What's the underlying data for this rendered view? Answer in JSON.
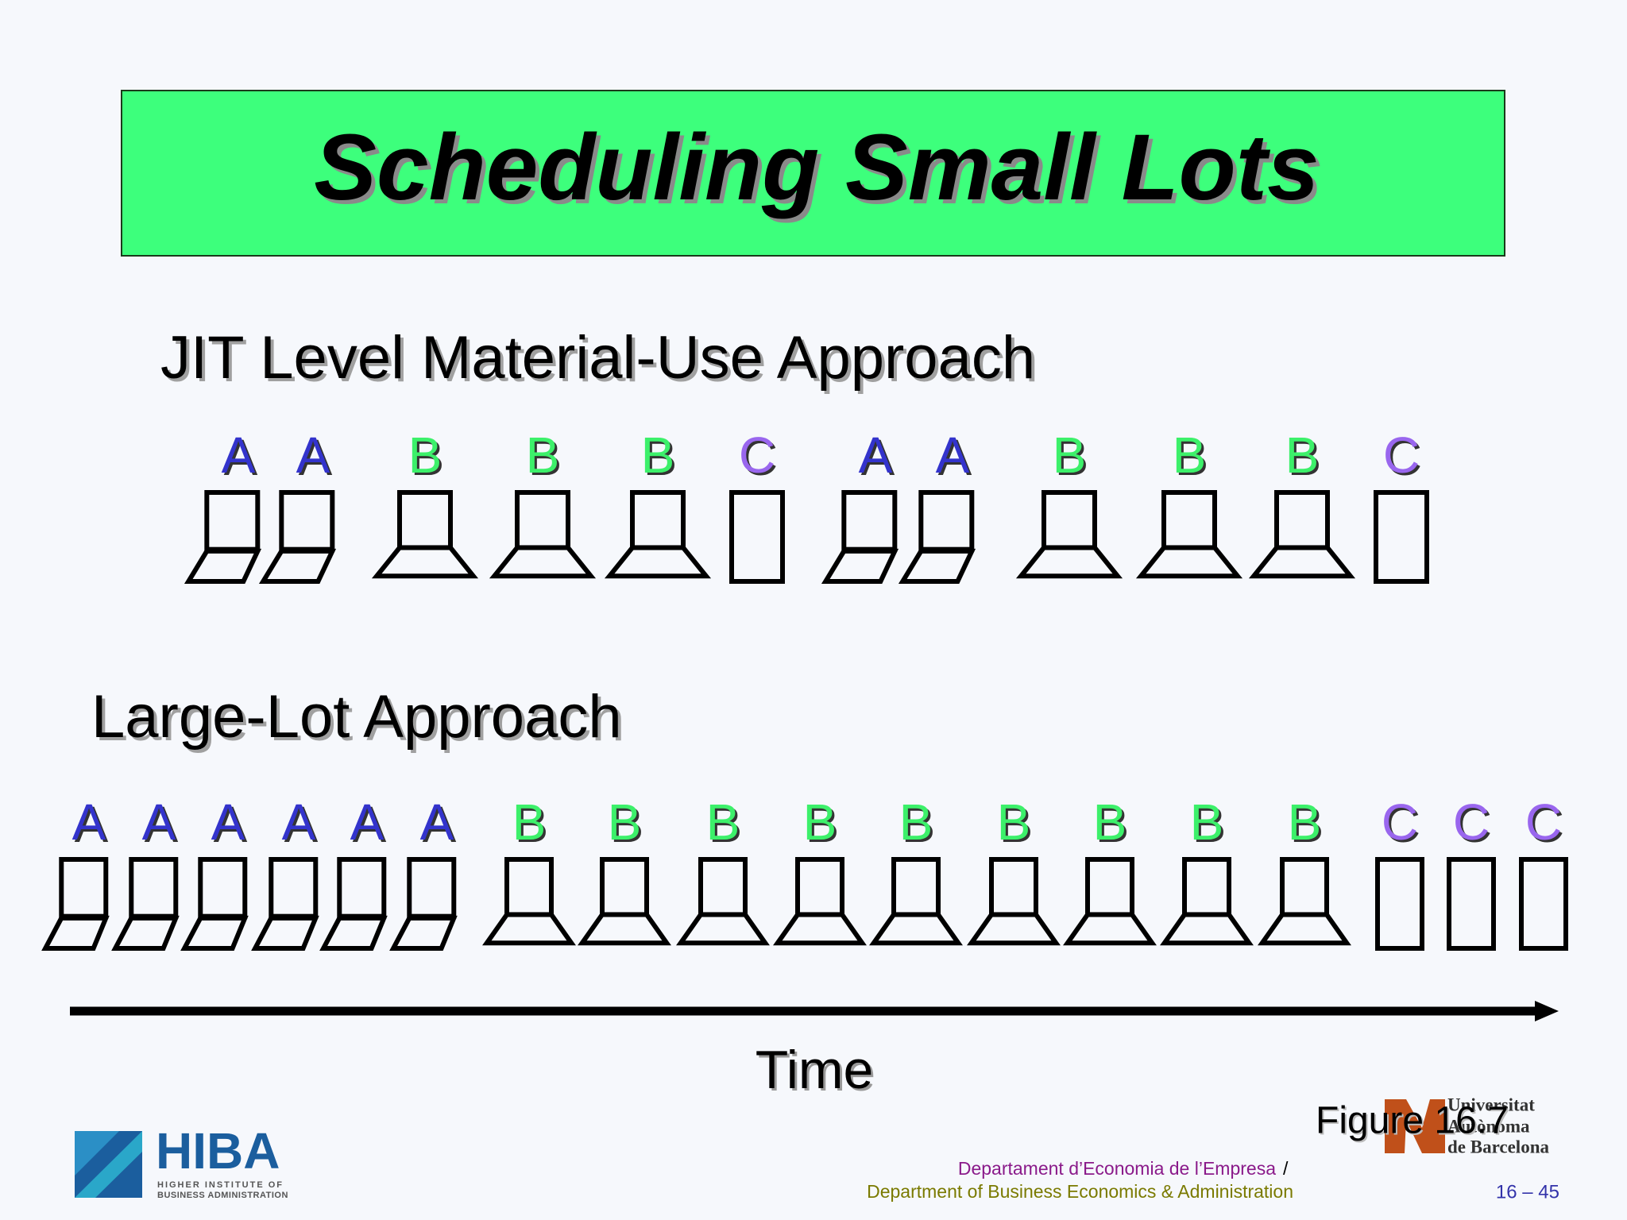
{
  "title": "Scheduling Small Lots",
  "jit": {
    "heading": "JIT Level Material-Use Approach",
    "items": [
      "A",
      "A",
      "B",
      "B",
      "B",
      "C",
      "A",
      "A",
      "B",
      "B",
      "B",
      "C"
    ]
  },
  "large_lot": {
    "heading": "Large-Lot Approach",
    "items": [
      "A",
      "A",
      "A",
      "A",
      "A",
      "A",
      "B",
      "B",
      "B",
      "B",
      "B",
      "B",
      "B",
      "B",
      "B",
      "C",
      "C",
      "C"
    ]
  },
  "axis_label": "Time",
  "figure": "Figure 16.7",
  "logos": {
    "hiba": {
      "name": "HIBA",
      "line1": "HIGHER INSTITUTE OF",
      "line2": "BUSINESS ADMINISTRATION"
    },
    "uab": {
      "line1": "Universitat",
      "line2": "Autònoma",
      "line3": "de Barcelona"
    }
  },
  "footer": {
    "department_ca": "Departament d’Economia de l’Empresa",
    "separator": "/",
    "department_en": "Department of Business Economics & Administration",
    "page": "16 – 45"
  }
}
